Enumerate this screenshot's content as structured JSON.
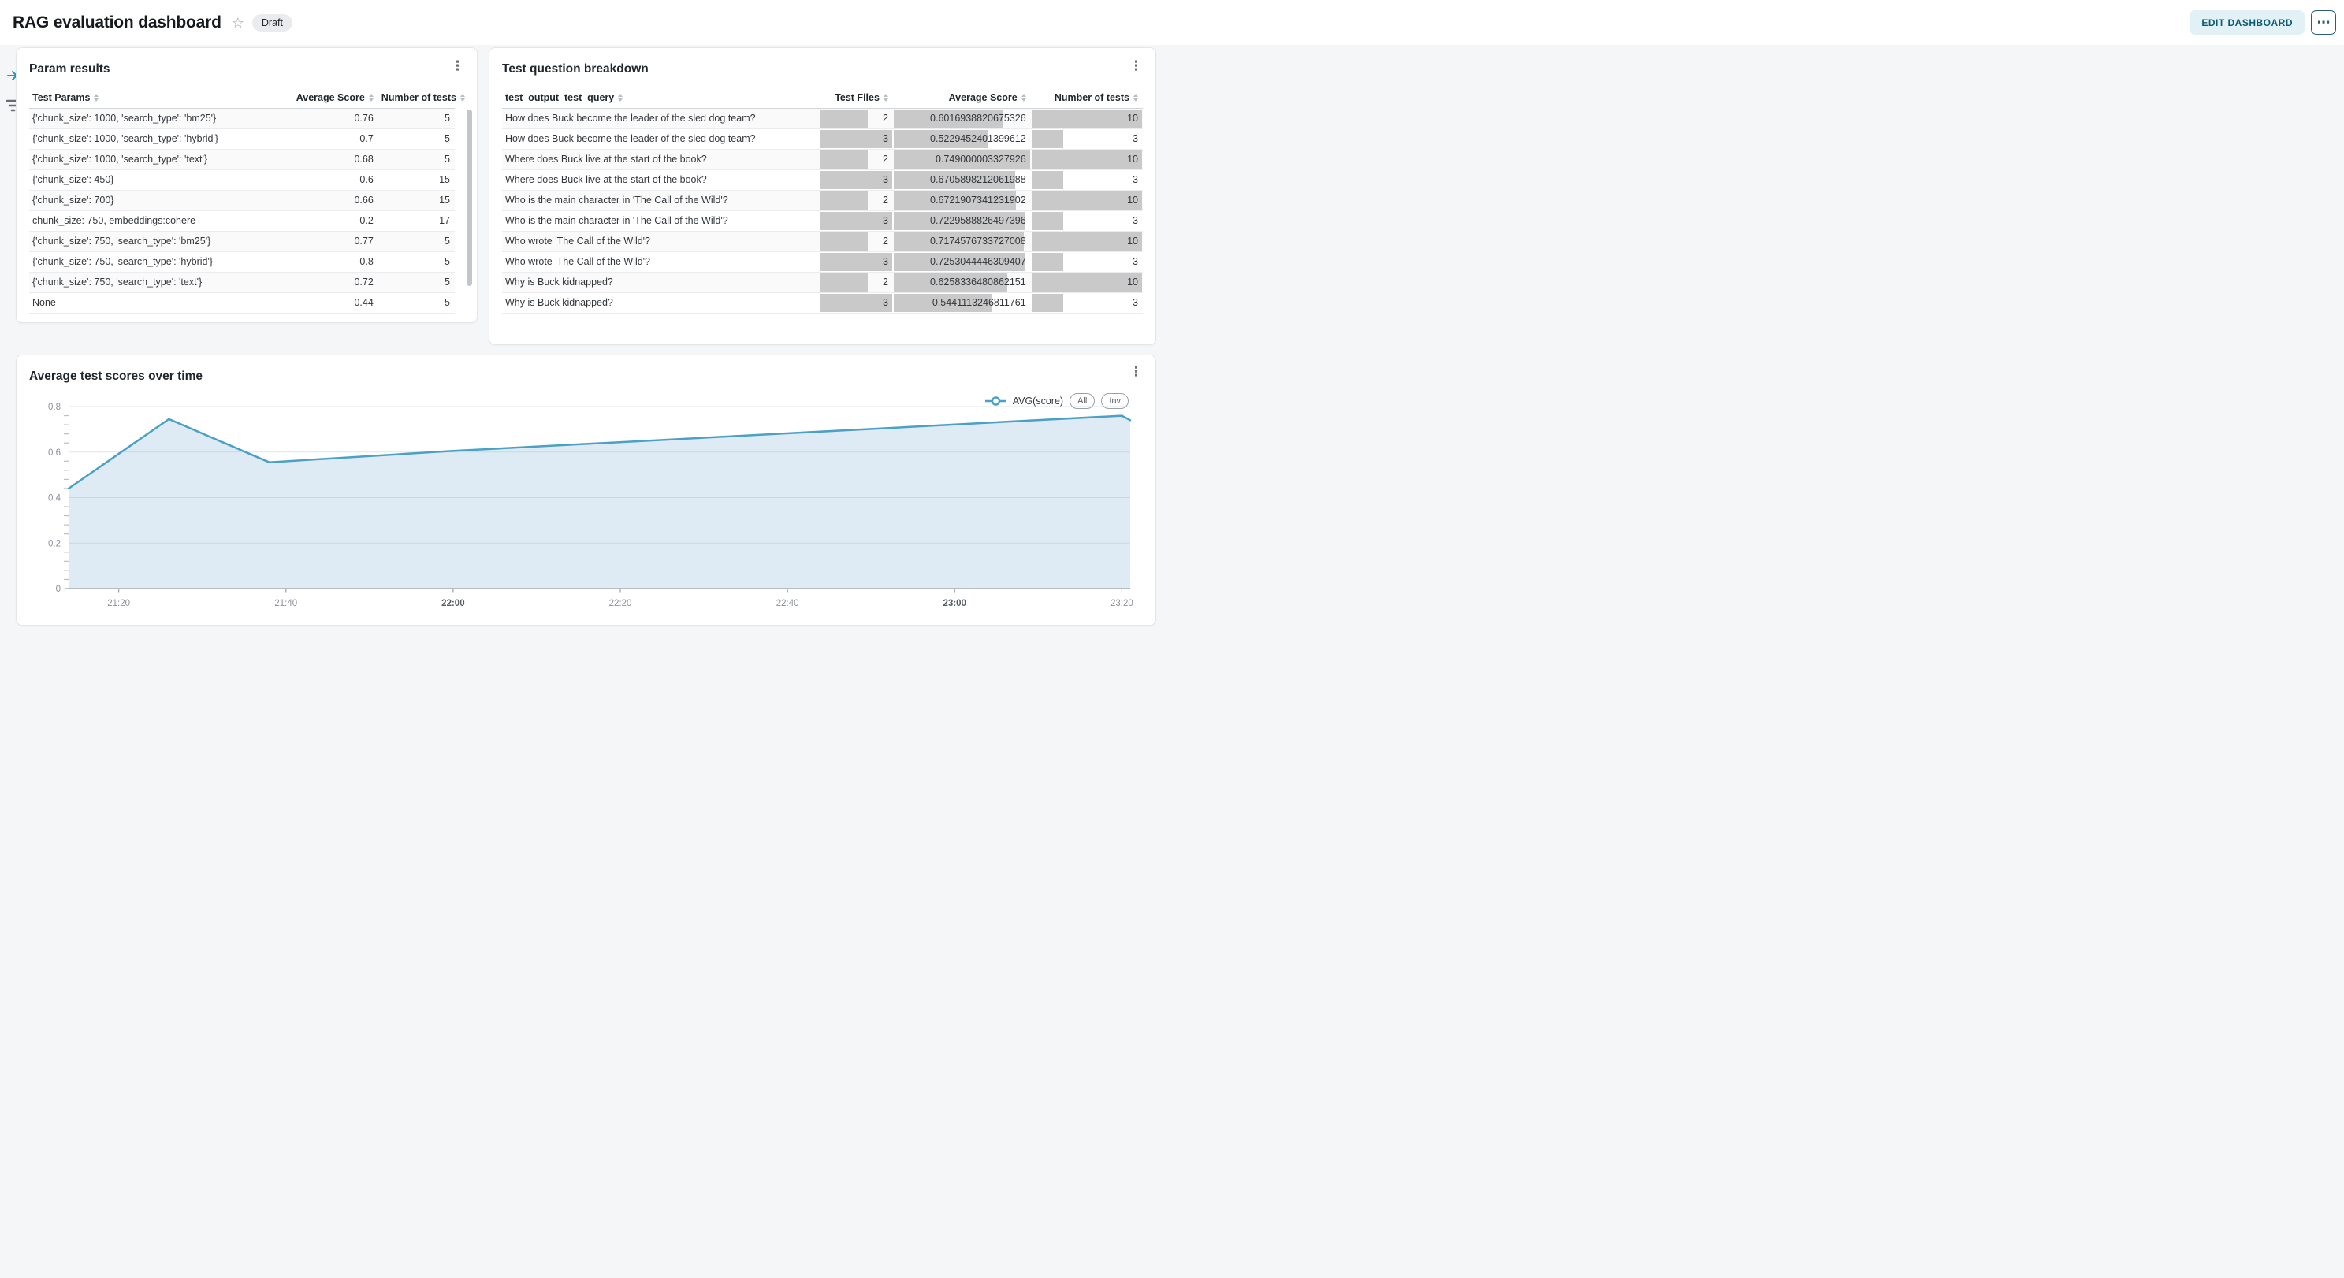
{
  "icons": {
    "star": "☆",
    "kebab": "⋮",
    "more": "⋯"
  },
  "header": {
    "title": "RAG evaluation dashboard",
    "badge": "Draft",
    "edit_button": "EDIT DASHBOARD"
  },
  "param_results": {
    "title": "Param results",
    "columns": [
      "Test Params",
      "Average Score",
      "Number of tests"
    ],
    "rows": [
      [
        "{'chunk_size': 1000, 'search_type': 'bm25'}",
        "0.76",
        "5"
      ],
      [
        "{'chunk_size': 1000, 'search_type': 'hybrid'}",
        "0.7",
        "5"
      ],
      [
        "{'chunk_size': 1000, 'search_type': 'text'}",
        "0.68",
        "5"
      ],
      [
        "{'chunk_size': 450}",
        "0.6",
        "15"
      ],
      [
        "{'chunk_size': 700}",
        "0.66",
        "15"
      ],
      [
        "chunk_size: 750, embeddings:cohere",
        "0.2",
        "17"
      ],
      [
        "{'chunk_size': 750, 'search_type': 'bm25'}",
        "0.77",
        "5"
      ],
      [
        "{'chunk_size': 750, 'search_type': 'hybrid'}",
        "0.8",
        "5"
      ],
      [
        "{'chunk_size': 750, 'search_type': 'text'}",
        "0.72",
        "5"
      ],
      [
        "None",
        "0.44",
        "5"
      ]
    ]
  },
  "question_breakdown": {
    "title": "Test question breakdown",
    "columns": [
      "test_output_test_query",
      "Test Files",
      "Average Score",
      "Number of tests"
    ],
    "bar_max": {
      "files": 3,
      "score": 0.749000003327926,
      "tests": 10
    },
    "rows": [
      [
        "How does Buck become the leader of the sled dog team?",
        2,
        "0.6016938820675326",
        10
      ],
      [
        "How does Buck become the leader of the sled dog team?",
        3,
        "0.5229452401399612",
        3
      ],
      [
        "Where does Buck live at the start of the book?",
        2,
        "0.749000003327926",
        10
      ],
      [
        "Where does Buck live at the start of the book?",
        3,
        "0.6705898212061988",
        3
      ],
      [
        "Who is the main character in 'The Call of the Wild'?",
        2,
        "0.6721907341231902",
        10
      ],
      [
        "Who is the main character in 'The Call of the Wild'?",
        3,
        "0.7229588826497396",
        3
      ],
      [
        "Who wrote 'The Call of the Wild'?",
        2,
        "0.7174576733727008",
        10
      ],
      [
        "Who wrote 'The Call of the Wild'?",
        3,
        "0.7253044446309407",
        3
      ],
      [
        "Why is Buck kidnapped?",
        2,
        "0.6258336480862151",
        10
      ],
      [
        "Why is Buck kidnapped?",
        3,
        "0.5441113246811761",
        3
      ]
    ]
  },
  "chart_panel": {
    "title": "Average test scores over time",
    "legend": {
      "series": "AVG(score)",
      "all_button": "All",
      "inv_button": "Inv"
    }
  },
  "chart_data": {
    "type": "area",
    "title": "Average test scores over time",
    "series": [
      {
        "name": "AVG(score)",
        "points": [
          [
            "21:14",
            0.44
          ],
          [
            "21:26",
            0.745
          ],
          [
            "21:38",
            0.555
          ],
          [
            "22:00",
            0.605
          ],
          [
            "23:20",
            0.76
          ],
          [
            "23:21",
            0.74
          ]
        ]
      }
    ],
    "x_range": [
      "21:14",
      "23:21"
    ],
    "x_ticks": [
      "21:20",
      "21:40",
      "22:00",
      "22:20",
      "22:40",
      "23:00",
      "23:20"
    ],
    "x_bold_ticks": [
      "22:00",
      "23:00"
    ],
    "y_ticks": [
      0,
      0.2,
      0.4,
      0.6,
      0.8
    ],
    "y_minor_step": 0.04,
    "ylim": [
      0,
      0.8
    ],
    "grid": true,
    "legend_position": "top-right",
    "line_color": "#4aa0c5",
    "fill_color": "#dfebf4",
    "grid_color": "rgba(127,163,191,0.27)",
    "axis_color": "#9aa1aa",
    "tick_label_color": "#8b919a",
    "tick_label_bold_color": "#565c64"
  },
  "colors": {
    "accent_teal": "#0d5a73",
    "edit_button_bg": "#e2f1f6",
    "data_bar": "#c9c9c9",
    "rail_icon_blue": "#2596be"
  }
}
